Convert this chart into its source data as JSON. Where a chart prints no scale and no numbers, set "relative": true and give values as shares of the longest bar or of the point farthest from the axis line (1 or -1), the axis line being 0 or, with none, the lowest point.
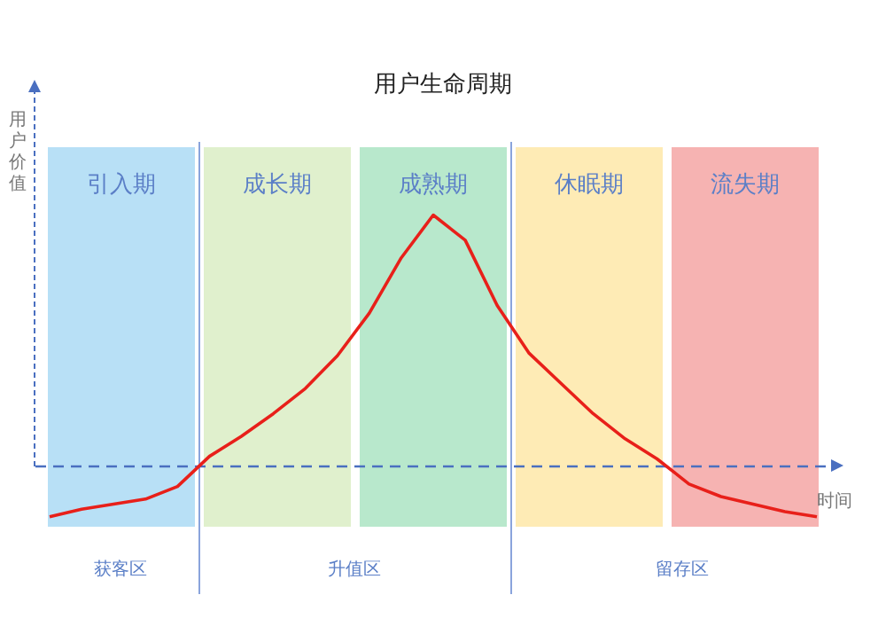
{
  "chart_data": {
    "type": "line",
    "title": "用户生命周期",
    "xlabel": "时间",
    "ylabel": "用户价值",
    "relative": true,
    "legend": false,
    "marker": "none",
    "line_style": "solid",
    "categories": [
      null,
      null,
      null,
      null,
      null,
      null,
      null,
      null,
      null,
      null,
      null,
      null,
      null,
      null,
      null,
      null,
      null,
      null,
      null,
      null,
      null,
      null,
      null,
      null,
      null
    ],
    "series": [
      {
        "color": "#e8201a",
        "values": [
          -0.2,
          -0.17,
          -0.15,
          -0.13,
          -0.08,
          0.04,
          0.12,
          0.21,
          0.31,
          0.44,
          0.61,
          0.83,
          1,
          0.9,
          0.64,
          0.45,
          0.33,
          0.21,
          0.11,
          0.03,
          -0.07,
          -0.12,
          -0.15,
          -0.18,
          -0.2
        ]
      }
    ],
    "ref_lines": [
      {
        "axis": "y",
        "value": 0,
        "color": "#4a6fc0",
        "line_style": "dashed"
      }
    ],
    "annotations": [
      "引入期",
      "成长期",
      "成熟期",
      "休眠期",
      "流失期",
      "获客区",
      "升值区",
      "留存区"
    ]
  }
}
